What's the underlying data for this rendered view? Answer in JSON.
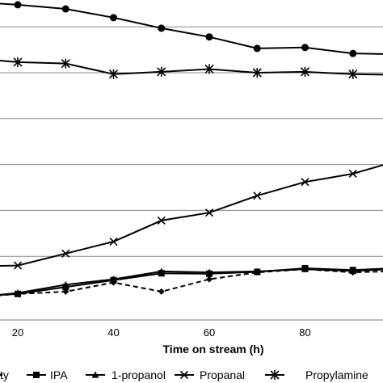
{
  "chart_data": {
    "type": "line",
    "xlabel": "Time on stream (h)",
    "x_ticks": [
      "20",
      "40",
      "60",
      "80"
    ],
    "xlim": [
      14,
      103.5
    ],
    "gridlines_y": [
      1,
      2,
      3,
      4,
      5,
      6
    ],
    "grid": "horizontal",
    "legend_position": "bottom",
    "series": [
      {
        "name": "",
        "marker": "circle",
        "style": "solid",
        "x": [
          10,
          20,
          30,
          40,
          50,
          60,
          70,
          80,
          90,
          100
        ],
        "y": [
          6.55,
          6.48,
          6.39,
          6.2,
          5.97,
          5.78,
          5.53,
          5.55,
          5.42,
          5.4
        ]
      },
      {
        "name": "Propylamine",
        "marker": "asterisk",
        "style": "solid",
        "x": [
          10,
          20,
          30,
          40,
          50,
          60,
          70,
          80,
          90,
          100
        ],
        "y": [
          5.32,
          5.23,
          5.2,
          4.97,
          5.02,
          5.08,
          5.0,
          5.02,
          4.97,
          4.95
        ]
      },
      {
        "name": "Propanal",
        "marker": "x",
        "style": "solid",
        "x": [
          10,
          20,
          30,
          40,
          50,
          60,
          70,
          80,
          90,
          100
        ],
        "y": [
          0.78,
          0.8,
          1.06,
          1.32,
          1.78,
          1.95,
          2.32,
          2.62,
          2.8,
          3.1
        ]
      },
      {
        "name": "IPA",
        "marker": "square",
        "style": "solid",
        "x": [
          10,
          20,
          30,
          40,
          50,
          60,
          70,
          80,
          90,
          100
        ],
        "y": [
          0.12,
          0.18,
          0.33,
          0.48,
          0.63,
          0.62,
          0.66,
          0.74,
          0.7,
          0.75
        ]
      },
      {
        "name": "1-propanol",
        "marker": "triangle",
        "style": "solid",
        "x": [
          10,
          20,
          30,
          40,
          50,
          60,
          70,
          80,
          90,
          100
        ],
        "y": [
          0.1,
          0.2,
          0.38,
          0.5,
          0.67,
          0.65,
          0.67,
          0.72,
          0.68,
          0.73
        ]
      },
      {
        "name": "",
        "marker": "diamond",
        "style": "dashed",
        "x": [
          10,
          20,
          30,
          40,
          50,
          60,
          70,
          80,
          90,
          100
        ],
        "y": [
          0.1,
          0.18,
          0.23,
          0.43,
          0.23,
          0.5,
          0.65,
          0.72,
          0.65,
          0.68
        ]
      }
    ],
    "legend": [
      {
        "label": "ty",
        "marker": "diamond",
        "style": "dashed"
      },
      {
        "label": "IPA",
        "marker": "square",
        "style": "solid"
      },
      {
        "label": "1-propanol",
        "marker": "triangle",
        "style": "solid"
      },
      {
        "label": "Propanal",
        "marker": "x",
        "style": "solid"
      },
      {
        "label": "Propylamine",
        "marker": "asterisk",
        "style": "solid"
      }
    ]
  }
}
